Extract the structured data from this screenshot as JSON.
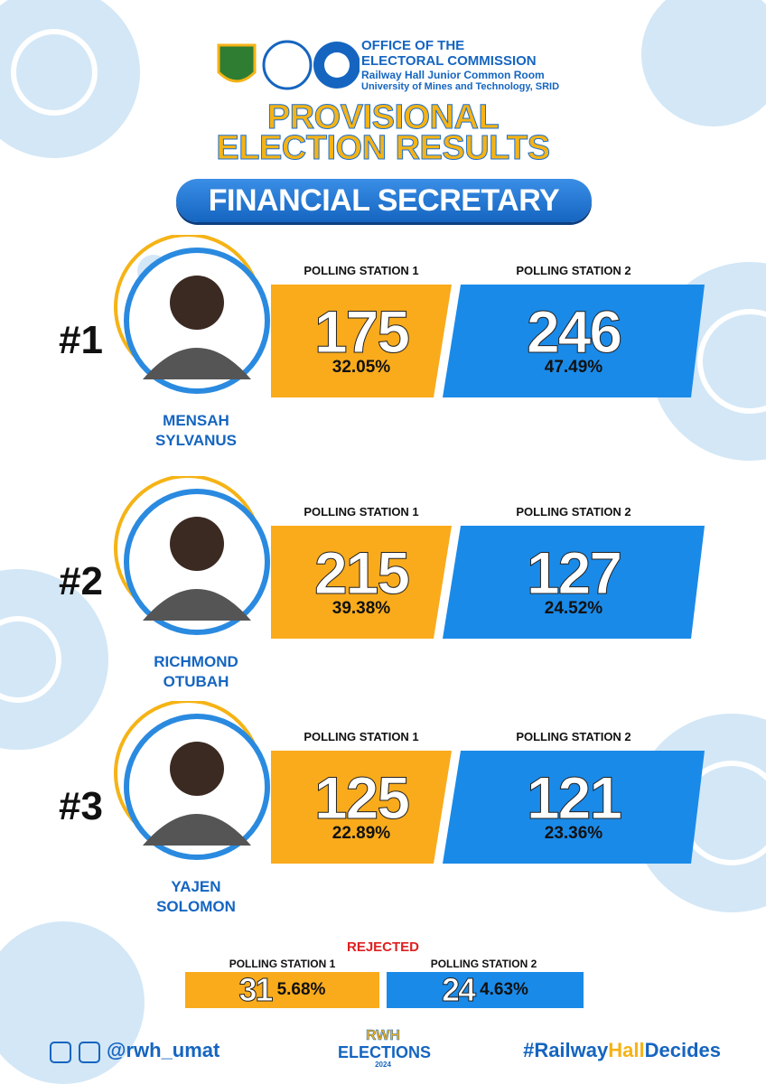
{
  "header": {
    "lines": [
      "OFFICE OF THE",
      "ELECTORAL COMMISSION",
      "Railway Hall Junior Common Room",
      "University of Mines and Technology, SRID"
    ]
  },
  "title": [
    "PROVISIONAL",
    "ELECTION RESULTS"
  ],
  "position": "FINANCIAL SECRETARY",
  "candidates": [
    {
      "rank": "#1",
      "name": [
        "MENSAH",
        "SYLVANUS"
      ],
      "stations": [
        {
          "label": "POLLING STATION 1",
          "votes": 175,
          "percent": "32.05%"
        },
        {
          "label": "POLLING STATION 2",
          "votes": 246,
          "percent": "47.49%"
        }
      ]
    },
    {
      "rank": "#2",
      "name": [
        "RICHMOND",
        "OTUBAH"
      ],
      "stations": [
        {
          "label": "POLLING STATION 1",
          "votes": 215,
          "percent": "39.38%"
        },
        {
          "label": "POLLING STATION 2",
          "votes": 127,
          "percent": "24.52%"
        }
      ]
    },
    {
      "rank": "#3",
      "name": [
        "YAJEN",
        "SOLOMON"
      ],
      "stations": [
        {
          "label": "POLLING STATION 1",
          "votes": 125,
          "percent": "22.89%"
        },
        {
          "label": "POLLING STATION 2",
          "votes": 121,
          "percent": "23.36%"
        }
      ]
    }
  ],
  "rejected": {
    "label": "REJECTED",
    "stations": [
      {
        "label": "POLLING STATION 1",
        "votes": 31,
        "percent": "5.68%"
      },
      {
        "label": "POLLING STATION 2",
        "votes": 24,
        "percent": "4.63%"
      }
    ]
  },
  "footer": {
    "handle": "@rwh_umat",
    "logo": [
      "RWH",
      "ELECTIONS",
      "2024"
    ],
    "hashtag": [
      "#Railway",
      "Hall",
      "Decides"
    ]
  }
}
